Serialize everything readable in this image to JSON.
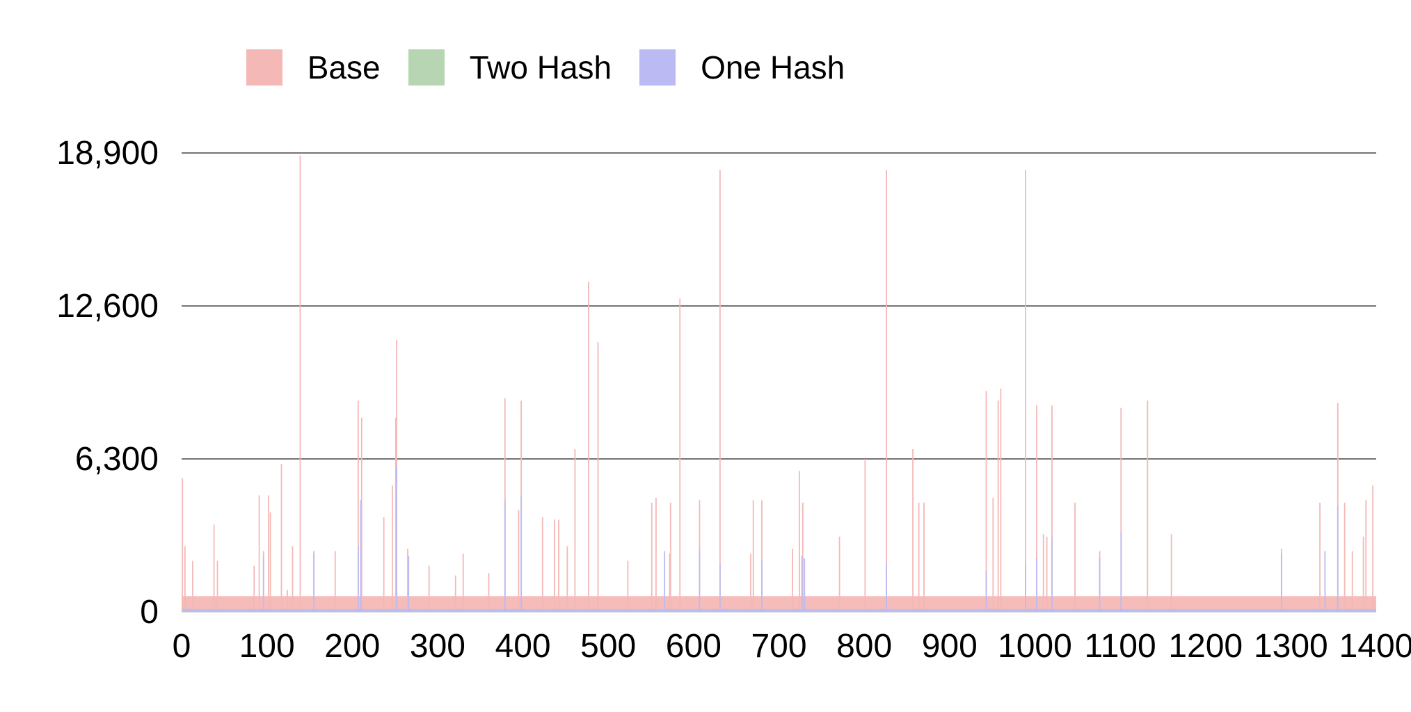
{
  "chart_data": {
    "type": "bar",
    "title": "",
    "xlabel": "",
    "ylabel": "",
    "legend_position": "top-center",
    "grid": true,
    "ylim": [
      0,
      18900
    ],
    "xlim": [
      0,
      1400
    ],
    "y_ticks": [
      0,
      6300,
      12600,
      18900
    ],
    "y_tick_labels": [
      "0",
      "6,300",
      "12,600",
      "18,900"
    ],
    "x_ticks": [
      0,
      100,
      200,
      300,
      400,
      500,
      600,
      700,
      800,
      900,
      1000,
      1100,
      1200,
      1300,
      1400
    ],
    "x_tick_labels": [
      "0",
      "100",
      "200",
      "300",
      "400",
      "500",
      "600",
      "700",
      "800",
      "900",
      "1000",
      "1100",
      "1200",
      "1300",
      "1400"
    ],
    "series": [
      {
        "name": "Base",
        "color": "#f4b8b6",
        "baseline": 650,
        "spikes": [
          [
            1,
            5500
          ],
          [
            4,
            2700
          ],
          [
            13,
            2100
          ],
          [
            38,
            3600
          ],
          [
            42,
            2100
          ],
          [
            85,
            1900
          ],
          [
            91,
            4800
          ],
          [
            96,
            2500
          ],
          [
            102,
            4800
          ],
          [
            104,
            4100
          ],
          [
            117,
            6100
          ],
          [
            124,
            900
          ],
          [
            130,
            2700
          ],
          [
            139,
            18800
          ],
          [
            155,
            2500
          ],
          [
            180,
            2500
          ],
          [
            207,
            8700
          ],
          [
            211,
            8000
          ],
          [
            237,
            3900
          ],
          [
            247,
            5200
          ],
          [
            251,
            8000
          ],
          [
            252,
            11200
          ],
          [
            265,
            2600
          ],
          [
            290,
            1900
          ],
          [
            321,
            1500
          ],
          [
            330,
            2400
          ],
          [
            360,
            1600
          ],
          [
            379,
            8800
          ],
          [
            395,
            4200
          ],
          [
            398,
            8700
          ],
          [
            423,
            3900
          ],
          [
            437,
            3800
          ],
          [
            442,
            3800
          ],
          [
            452,
            2700
          ],
          [
            461,
            6700
          ],
          [
            477,
            13600
          ],
          [
            488,
            11100
          ],
          [
            523,
            2100
          ],
          [
            551,
            4500
          ],
          [
            556,
            4700
          ],
          [
            572,
            2400
          ],
          [
            573,
            4500
          ],
          [
            584,
            12900
          ],
          [
            607,
            4600
          ],
          [
            631,
            18200
          ],
          [
            667,
            2400
          ],
          [
            670,
            4600
          ],
          [
            680,
            4600
          ],
          [
            716,
            2600
          ],
          [
            724,
            5800
          ],
          [
            728,
            4500
          ],
          [
            771,
            3100
          ],
          [
            801,
            6300
          ],
          [
            826,
            18200
          ],
          [
            857,
            6700
          ],
          [
            864,
            4500
          ],
          [
            870,
            4500
          ],
          [
            943,
            9100
          ],
          [
            951,
            4700
          ],
          [
            957,
            8700
          ],
          [
            960,
            9200
          ],
          [
            989,
            18200
          ],
          [
            1002,
            8500
          ],
          [
            1010,
            3200
          ],
          [
            1014,
            3100
          ],
          [
            1020,
            8500
          ],
          [
            1047,
            4500
          ],
          [
            1076,
            2500
          ],
          [
            1101,
            8400
          ],
          [
            1132,
            8700
          ],
          [
            1160,
            3200
          ],
          [
            1289,
            2600
          ],
          [
            1334,
            4500
          ],
          [
            1355,
            8600
          ],
          [
            1363,
            4500
          ],
          [
            1372,
            2500
          ],
          [
            1385,
            3100
          ],
          [
            1388,
            4600
          ],
          [
            1396,
            5200
          ]
        ]
      },
      {
        "name": "Two Hash",
        "color": "#b7d5b3",
        "baseline": 80,
        "spikes": []
      },
      {
        "name": "One Hash",
        "color": "#bcbaf3",
        "baseline": 120,
        "spikes": [
          [
            96,
            2300
          ],
          [
            155,
            2400
          ],
          [
            207,
            2700
          ],
          [
            210,
            4600
          ],
          [
            252,
            6000
          ],
          [
            266,
            2300
          ],
          [
            379,
            4600
          ],
          [
            398,
            4800
          ],
          [
            566,
            2500
          ],
          [
            607,
            2600
          ],
          [
            631,
            2000
          ],
          [
            680,
            2100
          ],
          [
            727,
            2300
          ],
          [
            730,
            2200
          ],
          [
            826,
            2000
          ],
          [
            943,
            1700
          ],
          [
            989,
            2000
          ],
          [
            1002,
            2200
          ],
          [
            1020,
            3100
          ],
          [
            1076,
            2200
          ],
          [
            1101,
            3300
          ],
          [
            1289,
            2400
          ],
          [
            1340,
            2500
          ],
          [
            1355,
            4400
          ]
        ]
      }
    ]
  }
}
